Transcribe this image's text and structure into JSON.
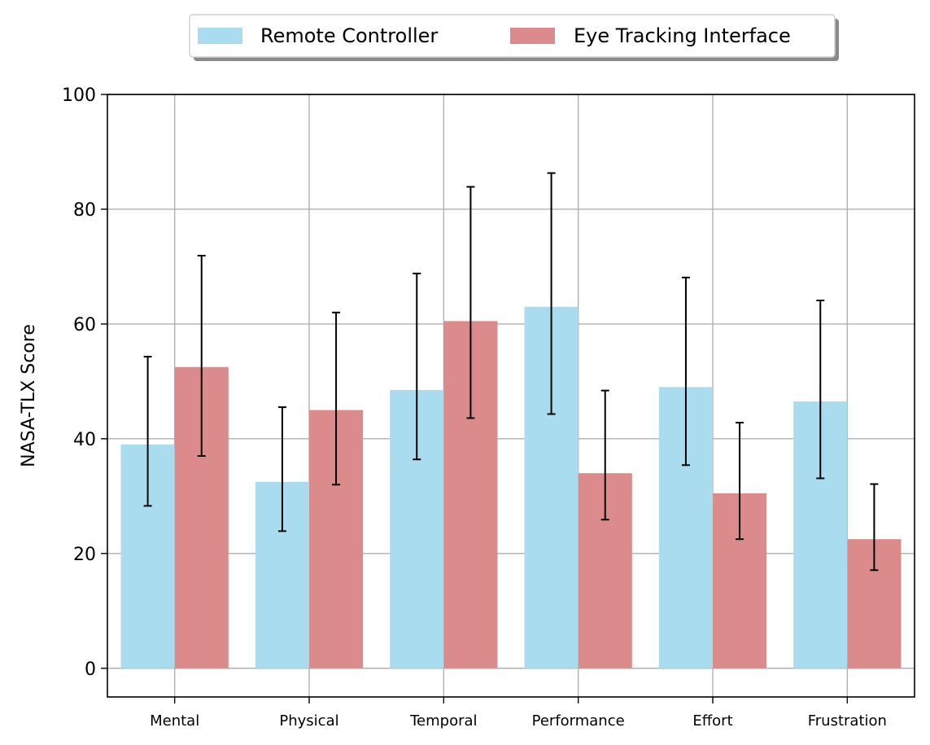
{
  "chart_data": {
    "type": "bar",
    "title": "",
    "xlabel": "",
    "ylabel": "NASA-TLX Score",
    "ylim": [
      -5,
      100
    ],
    "yticks": [
      0,
      20,
      40,
      60,
      80,
      100
    ],
    "grid": true,
    "legend_position": "top-center",
    "categories": [
      "Mental",
      "Physical",
      "Temporal",
      "Performance",
      "Effort",
      "Frustration"
    ],
    "series": [
      {
        "name": "Remote Controller",
        "color": "#a8dcee",
        "values": [
          39,
          32.5,
          48.5,
          63,
          49,
          46.5
        ],
        "error_low": [
          28.3,
          23.9,
          36.4,
          44.3,
          35.4,
          33.1
        ],
        "error_high": [
          54.3,
          45.5,
          68.8,
          86.3,
          68.1,
          64.1
        ]
      },
      {
        "name": "Eye Tracking Interface",
        "color": "#db8b8b",
        "values": [
          52.5,
          45,
          60.5,
          34,
          30.5,
          22.5
        ],
        "error_low": [
          37,
          32,
          43.6,
          25.9,
          22.5,
          17.1
        ],
        "error_high": [
          71.9,
          62,
          83.9,
          48.4,
          42.8,
          32.1
        ]
      }
    ]
  }
}
